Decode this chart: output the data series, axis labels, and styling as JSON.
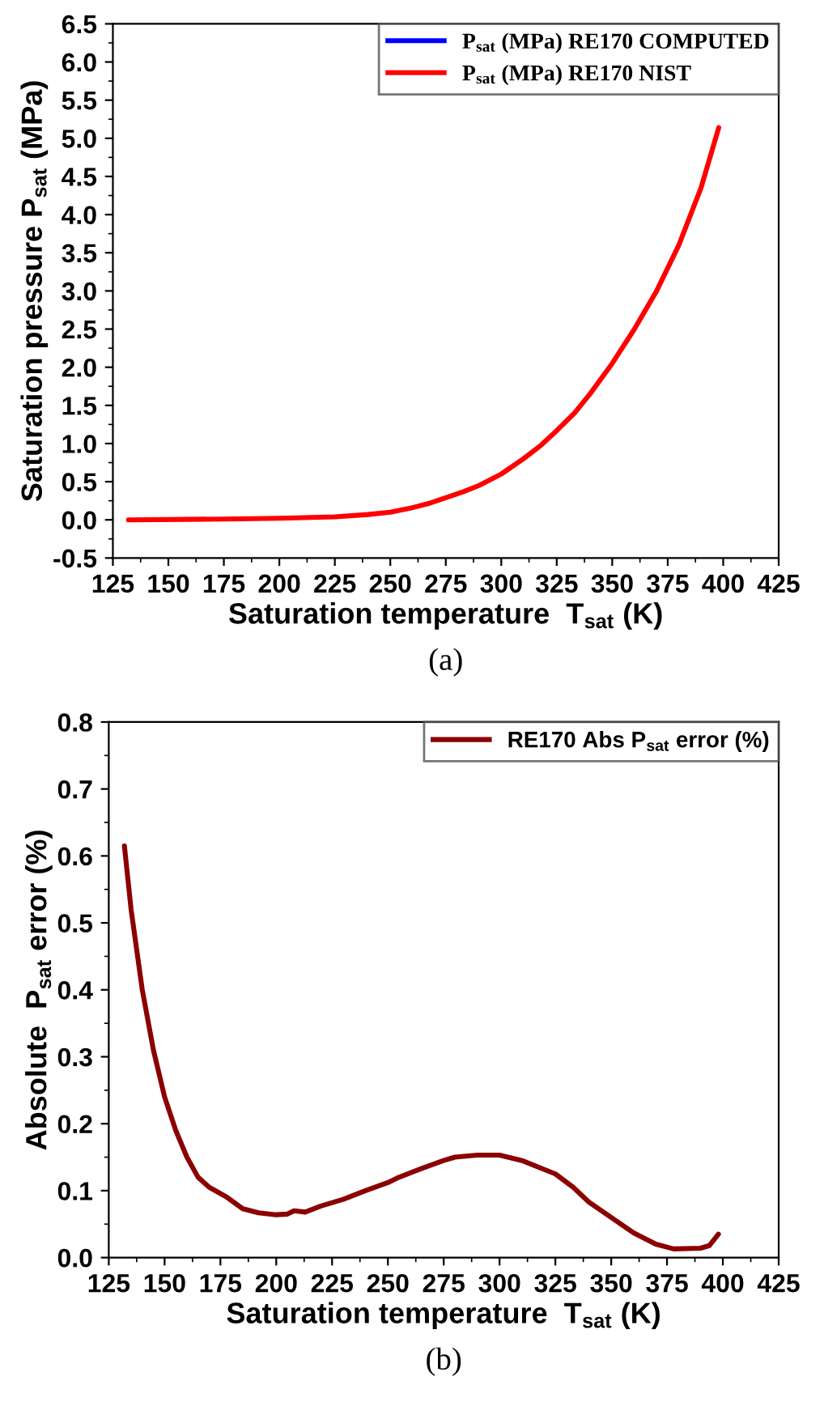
{
  "chart_data": [
    {
      "type": "line",
      "xlabel": "Saturation temperature  T$_{sat}$ (K)",
      "ylabel": "Saturation pressure P$_{sat}$ (MPa)",
      "xlim": [
        125,
        425
      ],
      "xticks": [
        125,
        150,
        175,
        200,
        225,
        250,
        275,
        300,
        325,
        350,
        375,
        400,
        425
      ],
      "ylim": [
        -0.5,
        6.5
      ],
      "yticks": [
        {
          "value": -0.5,
          "label": "-0.5"
        },
        {
          "value": 0,
          "label": "0.0"
        },
        {
          "value": 0.5,
          "label": "0.5"
        },
        {
          "value": 1,
          "label": "1.0"
        },
        {
          "value": 1.5,
          "label": "1.5"
        },
        {
          "value": 2,
          "label": "2.0"
        },
        {
          "value": 2.5,
          "label": "2.5"
        },
        {
          "value": 3,
          "label": "3.0"
        },
        {
          "value": 3.5,
          "label": "3.5"
        },
        {
          "value": 4,
          "label": "4.0"
        },
        {
          "value": 4.5,
          "label": "4.5"
        },
        {
          "value": 5,
          "label": "5.0"
        },
        {
          "value": 5.5,
          "label": "5.5"
        },
        {
          "value": 6,
          "label": "6.0"
        },
        {
          "value": 6.5,
          "label": "6.5"
        }
      ],
      "x": [
        132,
        175,
        200,
        225,
        240,
        250,
        260,
        268,
        275,
        283,
        290,
        300,
        310,
        318,
        325,
        333,
        340,
        350,
        360,
        370,
        380,
        390,
        398
      ],
      "series": [
        {
          "name": "P$_{sat}$ (MPa) RE170 COMPUTED",
          "color": "#0000ff",
          "values": [
            null,
            null,
            null,
            null,
            null,
            null,
            null,
            null,
            null,
            null,
            null,
            null,
            null,
            null,
            null,
            null,
            null,
            null,
            null,
            null,
            null,
            null,
            null
          ]
        },
        {
          "name": "P$_{sat}$ (MPa) RE170 NIST",
          "color": "#ff0000",
          "values": [
            0,
            0.01,
            0.02,
            0.04,
            0.07,
            0.1,
            0.16,
            0.22,
            0.29,
            0.37,
            0.45,
            0.6,
            0.8,
            0.98,
            1.17,
            1.4,
            1.65,
            2.05,
            2.5,
            3.0,
            3.6,
            4.35,
            5.14
          ]
        }
      ],
      "legend": "top right",
      "grid": false,
      "annotations": [
        "(a)"
      ]
    },
    {
      "type": "line",
      "xlabel": "Saturation temperature  T$_{sat}$ (K)",
      "ylabel": "Absolute  P$_{sat}$ error (%)",
      "xlim": [
        125,
        425
      ],
      "xticks": [
        125,
        150,
        175,
        200,
        225,
        250,
        275,
        300,
        325,
        350,
        375,
        400,
        425
      ],
      "ylim": [
        0,
        0.8
      ],
      "yticks": [
        {
          "value": 0,
          "label": "0.0"
        },
        0.1,
        0.2,
        0.3,
        0.4,
        0.5,
        0.6,
        0.7,
        0.8
      ],
      "x": [
        132,
        135,
        140,
        145,
        150,
        155,
        160,
        165,
        170,
        178,
        185,
        192,
        200,
        205,
        208,
        213,
        220,
        230,
        240,
        250,
        255,
        265,
        275,
        280,
        290,
        300,
        310,
        325,
        333,
        340,
        350,
        360,
        370,
        378,
        390,
        394,
        398
      ],
      "series": [
        {
          "name": "RE170 Abs P$_{sat}$ error (%)",
          "color": "#8b0000",
          "values": [
            0.615,
            0.52,
            0.4,
            0.31,
            0.24,
            0.19,
            0.15,
            0.12,
            0.105,
            0.09,
            0.073,
            0.067,
            0.064,
            0.065,
            0.07,
            0.068,
            0.077,
            0.087,
            0.1,
            0.112,
            0.12,
            0.133,
            0.145,
            0.15,
            0.153,
            0.153,
            0.145,
            0.125,
            0.105,
            0.083,
            0.06,
            0.037,
            0.02,
            0.013,
            0.014,
            0.018,
            0.035
          ]
        }
      ],
      "legend": "top right",
      "grid": false,
      "annotations": [
        "(b)"
      ]
    }
  ]
}
